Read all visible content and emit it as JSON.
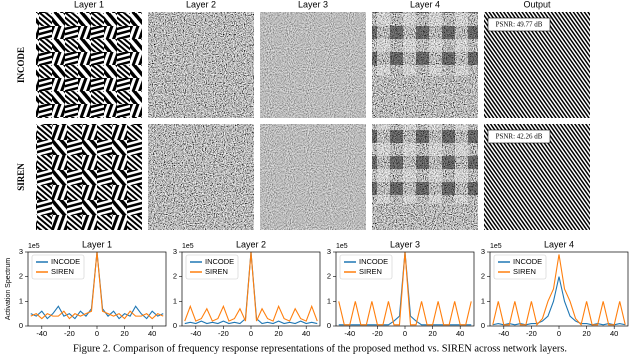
{
  "figure": {
    "row_labels": [
      "INCODE",
      "SIREN"
    ],
    "column_labels": [
      "Layer 1",
      "Layer 2",
      "Layer 3",
      "Layer 4",
      "Output"
    ],
    "psnr_labels": [
      "PSNR: 49.77 dB",
      "PSNR: 42.26 dB"
    ]
  },
  "chart_data": [
    {
      "type": "line",
      "title": "Layer 1",
      "ylabel": "Activation Spectrum",
      "y_offset_label": "1e5",
      "x": [
        -48,
        -44,
        -40,
        -36,
        -32,
        -28,
        -24,
        -20,
        -16,
        -12,
        -8,
        -4,
        0,
        4,
        8,
        12,
        16,
        20,
        24,
        28,
        32,
        36,
        40,
        44,
        48
      ],
      "series": [
        {
          "name": "INCODE",
          "color": "#1f77b4",
          "values": [
            0.5,
            0.4,
            0.6,
            0.3,
            0.5,
            0.8,
            0.4,
            0.5,
            0.3,
            0.6,
            0.4,
            0.7,
            3.0,
            0.7,
            0.4,
            0.6,
            0.3,
            0.5,
            0.4,
            0.8,
            0.5,
            0.3,
            0.6,
            0.4,
            0.5
          ]
        },
        {
          "name": "SIREN",
          "color": "#ff7f0e",
          "values": [
            0.4,
            0.5,
            0.3,
            0.5,
            0.4,
            0.4,
            0.6,
            0.3,
            0.5,
            0.4,
            0.5,
            0.6,
            3.0,
            0.6,
            0.5,
            0.4,
            0.5,
            0.3,
            0.6,
            0.4,
            0.4,
            0.5,
            0.3,
            0.5,
            0.4
          ]
        }
      ],
      "xlim": [
        -50,
        50
      ],
      "ylim": [
        0,
        3
      ],
      "xticks": [
        -40,
        -20,
        0,
        20,
        40
      ],
      "yticks": [
        0,
        1,
        2,
        3
      ],
      "legend": "upper left"
    },
    {
      "type": "line",
      "title": "Layer 2",
      "y_offset_label": "1e5",
      "x": [
        -48,
        -44,
        -40,
        -36,
        -32,
        -28,
        -24,
        -20,
        -16,
        -12,
        -8,
        -4,
        0,
        4,
        8,
        12,
        16,
        20,
        24,
        28,
        32,
        36,
        40,
        44,
        48
      ],
      "series": [
        {
          "name": "INCODE",
          "color": "#1f77b4",
          "values": [
            0.1,
            0.15,
            0.1,
            0.2,
            0.1,
            0.15,
            0.1,
            0.2,
            0.1,
            0.15,
            0.1,
            0.3,
            3.0,
            0.3,
            0.1,
            0.15,
            0.1,
            0.2,
            0.1,
            0.15,
            0.1,
            0.2,
            0.1,
            0.15,
            0.1
          ]
        },
        {
          "name": "SIREN",
          "color": "#ff7f0e",
          "values": [
            0.2,
            0.8,
            0.2,
            0.3,
            0.7,
            0.2,
            0.3,
            0.8,
            0.2,
            0.3,
            0.7,
            0.2,
            3.0,
            0.2,
            0.7,
            0.3,
            0.2,
            0.8,
            0.3,
            0.2,
            0.7,
            0.3,
            0.2,
            0.8,
            0.2
          ]
        }
      ],
      "xlim": [
        -50,
        50
      ],
      "ylim": [
        0,
        3
      ],
      "xticks": [
        -40,
        -20,
        0,
        20,
        40
      ],
      "yticks": [
        0,
        1,
        2,
        3
      ],
      "legend": "upper left"
    },
    {
      "type": "line",
      "title": "Layer 3",
      "y_offset_label": "1e5",
      "x": [
        -48,
        -44,
        -40,
        -36,
        -32,
        -28,
        -24,
        -20,
        -16,
        -12,
        -8,
        -4,
        0,
        4,
        8,
        12,
        16,
        20,
        24,
        28,
        32,
        36,
        40,
        44,
        48
      ],
      "series": [
        {
          "name": "INCODE",
          "color": "#1f77b4",
          "values": [
            0.05,
            0.05,
            0.05,
            0.05,
            0.05,
            0.05,
            0.05,
            0.05,
            0.05,
            0.05,
            0.2,
            0.4,
            3.0,
            0.4,
            0.2,
            0.05,
            0.05,
            0.05,
            0.05,
            0.05,
            0.05,
            0.05,
            0.05,
            0.05,
            0.05
          ]
        },
        {
          "name": "SIREN",
          "color": "#ff7f0e",
          "values": [
            1.0,
            0.05,
            0.05,
            1.0,
            0.05,
            0.05,
            1.0,
            0.05,
            0.05,
            1.0,
            0.05,
            0.05,
            3.0,
            0.05,
            0.05,
            1.0,
            0.05,
            0.05,
            1.0,
            0.05,
            0.05,
            1.0,
            0.05,
            0.05,
            1.0
          ]
        }
      ],
      "xlim": [
        -50,
        50
      ],
      "ylim": [
        0,
        3
      ],
      "xticks": [
        -40,
        -20,
        0,
        20,
        40
      ],
      "yticks": [
        0,
        1,
        2,
        3
      ],
      "legend": "upper left"
    },
    {
      "type": "line",
      "title": "Layer 4",
      "y_offset_label": "1e5",
      "x": [
        -48,
        -44,
        -40,
        -36,
        -32,
        -28,
        -24,
        -20,
        -16,
        -12,
        -8,
        -4,
        0,
        4,
        8,
        12,
        16,
        20,
        24,
        28,
        32,
        36,
        40,
        44,
        48
      ],
      "series": [
        {
          "name": "INCODE",
          "color": "#1f77b4",
          "values": [
            0.05,
            0.1,
            0.05,
            0.1,
            0.05,
            0.1,
            0.05,
            0.1,
            0.1,
            0.2,
            0.4,
            1.0,
            2.0,
            1.0,
            0.4,
            0.2,
            0.1,
            0.1,
            0.05,
            0.1,
            0.05,
            0.1,
            0.05,
            0.1,
            0.05
          ]
        },
        {
          "name": "SIREN",
          "color": "#ff7f0e",
          "values": [
            0.05,
            1.0,
            0.05,
            0.05,
            1.0,
            0.05,
            0.05,
            1.0,
            0.05,
            0.3,
            1.0,
            1.5,
            2.9,
            1.5,
            1.0,
            0.3,
            0.05,
            1.0,
            0.05,
            0.05,
            1.0,
            0.05,
            0.05,
            1.0,
            0.05
          ]
        }
      ],
      "xlim": [
        -50,
        50
      ],
      "ylim": [
        0,
        3
      ],
      "xticks": [
        -40,
        -20,
        0,
        20,
        40
      ],
      "yticks": [
        0,
        1,
        2,
        3
      ],
      "legend": "upper left"
    }
  ],
  "caption": "Figure 2. Comparison of frequency response representations of the proposed method vs. SIREN across network layers."
}
